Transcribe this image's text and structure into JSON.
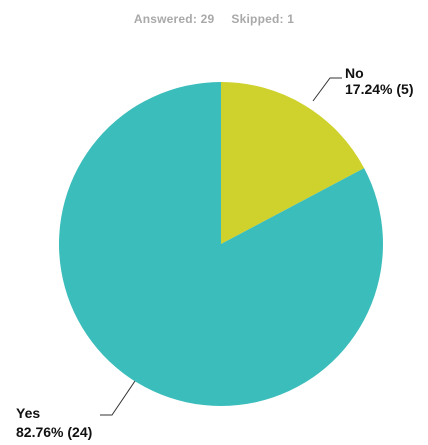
{
  "summary": {
    "answered_label": "Answered:",
    "answered_count": "29",
    "skipped_label": "Skipped:",
    "skipped_count": "1"
  },
  "chart_data": {
    "type": "pie",
    "title": "",
    "legend": "none",
    "slices": [
      {
        "label": "No",
        "percent": 17.24,
        "count": 5,
        "display": "17.24% (5)",
        "color": "#cfd12c"
      },
      {
        "label": "Yes",
        "percent": 82.76,
        "count": 24,
        "display": "82.76% (24)",
        "color": "#3bbdbb"
      }
    ]
  }
}
